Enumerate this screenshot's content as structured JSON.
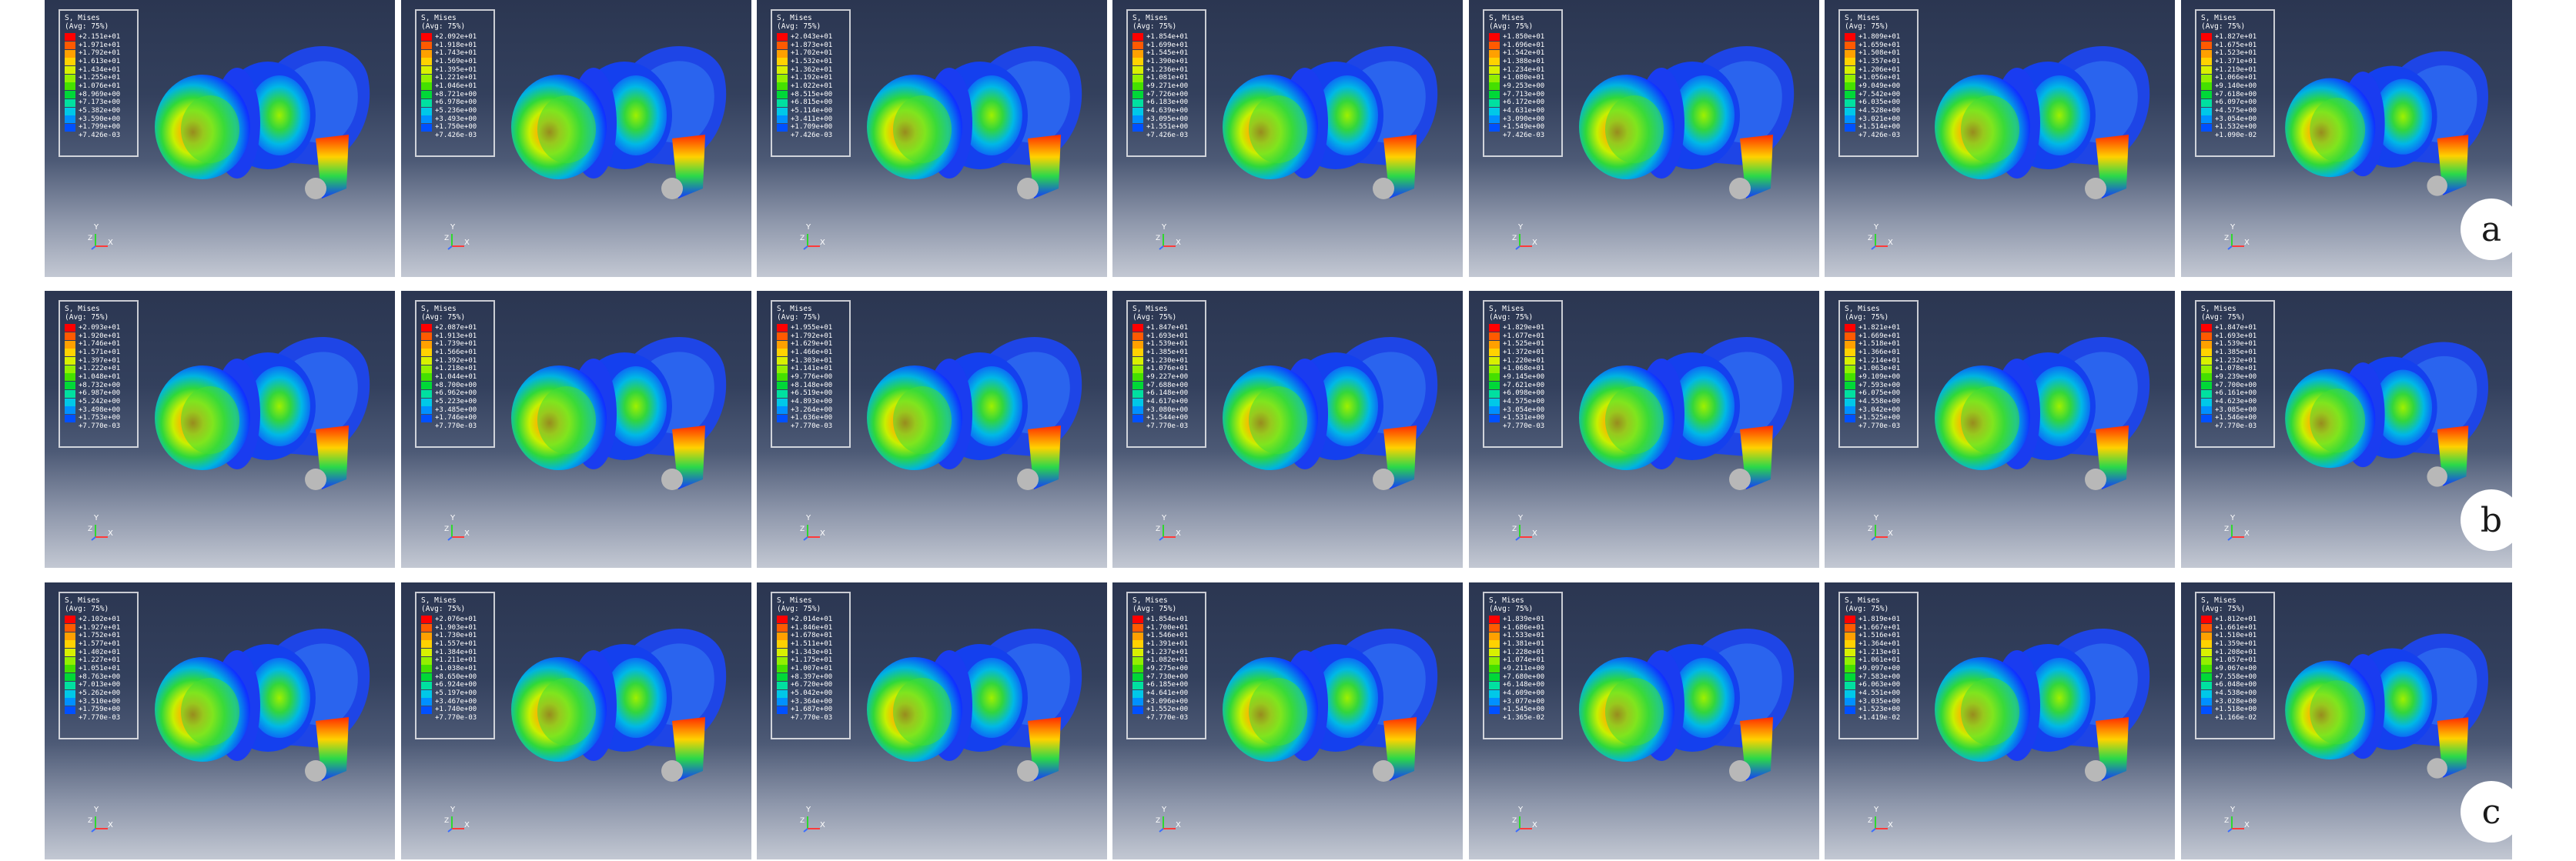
{
  "legend_colors": [
    "#ff0000",
    "#ff5a00",
    "#ffa000",
    "#ffd200",
    "#d8f000",
    "#93ef00",
    "#44e000",
    "#00d838",
    "#00e0a0",
    "#00c8e8",
    "#0090ff",
    "#0050ff",
    "#0a1cff"
  ],
  "axis_labels": {
    "y": "Y",
    "x": "X",
    "z": "Z"
  },
  "rows": [
    {
      "label": "a",
      "panels": [
        {
          "title": "S, Mises",
          "avg": "(Avg: 75%)",
          "values": [
            "+2.151e+01",
            "+1.971e+01",
            "+1.792e+01",
            "+1.613e+01",
            "+1.434e+01",
            "+1.255e+01",
            "+1.076e+01",
            "+8.969e+00",
            "+7.173e+00",
            "+5.382e+00",
            "+3.590e+00",
            "+1.799e+00",
            "+7.426e-03"
          ]
        },
        {
          "title": "S, Mises",
          "avg": "(Avg: 75%)",
          "values": [
            "+2.092e+01",
            "+1.918e+01",
            "+1.743e+01",
            "+1.569e+01",
            "+1.395e+01",
            "+1.221e+01",
            "+1.046e+01",
            "+8.721e+00",
            "+6.978e+00",
            "+5.236e+00",
            "+3.493e+00",
            "+1.750e+00",
            "+7.426e-03"
          ]
        },
        {
          "title": "S, Mises",
          "avg": "(Avg: 75%)",
          "values": [
            "+2.043e+01",
            "+1.873e+01",
            "+1.702e+01",
            "+1.532e+01",
            "+1.362e+01",
            "+1.192e+01",
            "+1.022e+01",
            "+8.515e+00",
            "+6.815e+00",
            "+5.114e+00",
            "+3.411e+00",
            "+1.709e+00",
            "+7.426e-03"
          ]
        },
        {
          "title": "S, Mises",
          "avg": "(Avg: 75%)",
          "values": [
            "+1.854e+01",
            "+1.699e+01",
            "+1.545e+01",
            "+1.390e+01",
            "+1.236e+01",
            "+1.081e+01",
            "+9.271e+00",
            "+7.726e+00",
            "+6.183e+00",
            "+4.639e+00",
            "+3.095e+00",
            "+1.551e+00",
            "+7.426e-03"
          ]
        },
        {
          "title": "S, Mises",
          "avg": "(Avg: 75%)",
          "values": [
            "+1.850e+01",
            "+1.696e+01",
            "+1.542e+01",
            "+1.388e+01",
            "+1.234e+01",
            "+1.080e+01",
            "+9.253e+00",
            "+7.713e+00",
            "+6.172e+00",
            "+4.631e+00",
            "+3.090e+00",
            "+1.549e+00",
            "+7.426e-03"
          ]
        },
        {
          "title": "S, Mises",
          "avg": "(Avg: 75%)",
          "values": [
            "+1.809e+01",
            "+1.659e+01",
            "+1.508e+01",
            "+1.357e+01",
            "+1.206e+01",
            "+1.056e+01",
            "+9.049e+00",
            "+7.542e+00",
            "+6.035e+00",
            "+4.528e+00",
            "+3.021e+00",
            "+1.514e+00",
            "+7.426e-03"
          ]
        },
        {
          "title": "S, Mises",
          "avg": "(Avg: 75%)",
          "values": [
            "+1.827e+01",
            "+1.675e+01",
            "+1.523e+01",
            "+1.371e+01",
            "+1.219e+01",
            "+1.066e+01",
            "+9.140e+00",
            "+7.618e+00",
            "+6.097e+00",
            "+4.575e+00",
            "+3.054e+00",
            "+1.532e+00",
            "+1.090e-02"
          ]
        }
      ]
    },
    {
      "label": "b",
      "panels": [
        {
          "title": "S, Mises",
          "avg": "(Avg: 75%)",
          "values": [
            "+2.093e+01",
            "+1.920e+01",
            "+1.746e+01",
            "+1.571e+01",
            "+1.397e+01",
            "+1.222e+01",
            "+1.048e+01",
            "+8.732e+00",
            "+6.987e+00",
            "+5.242e+00",
            "+3.498e+00",
            "+1.753e+00",
            "+7.770e-03"
          ]
        },
        {
          "title": "S, Mises",
          "avg": "(Avg: 75%)",
          "values": [
            "+2.087e+01",
            "+1.913e+01",
            "+1.739e+01",
            "+1.566e+01",
            "+1.392e+01",
            "+1.218e+01",
            "+1.044e+01",
            "+8.700e+00",
            "+6.962e+00",
            "+5.223e+00",
            "+3.485e+00",
            "+1.746e+00",
            "+7.770e-03"
          ]
        },
        {
          "title": "S, Mises",
          "avg": "(Avg: 75%)",
          "values": [
            "+1.955e+01",
            "+1.792e+01",
            "+1.629e+01",
            "+1.466e+01",
            "+1.303e+01",
            "+1.141e+01",
            "+9.776e+00",
            "+8.148e+00",
            "+6.519e+00",
            "+4.893e+00",
            "+3.264e+00",
            "+1.636e+00",
            "+7.770e-03"
          ]
        },
        {
          "title": "S, Mises",
          "avg": "(Avg: 75%)",
          "values": [
            "+1.847e+01",
            "+1.693e+01",
            "+1.539e+01",
            "+1.385e+01",
            "+1.230e+01",
            "+1.076e+01",
            "+9.227e+00",
            "+7.688e+00",
            "+6.148e+00",
            "+4.617e+00",
            "+3.080e+00",
            "+1.544e+00",
            "+7.770e-03"
          ]
        },
        {
          "title": "S, Mises",
          "avg": "(Avg: 75%)",
          "values": [
            "+1.829e+01",
            "+1.677e+01",
            "+1.525e+01",
            "+1.372e+01",
            "+1.220e+01",
            "+1.068e+01",
            "+9.145e+00",
            "+7.621e+00",
            "+6.098e+00",
            "+4.575e+00",
            "+3.054e+00",
            "+1.531e+00",
            "+7.770e-03"
          ]
        },
        {
          "title": "S, Mises",
          "avg": "(Avg: 75%)",
          "values": [
            "+1.821e+01",
            "+1.669e+01",
            "+1.518e+01",
            "+1.366e+01",
            "+1.214e+01",
            "+1.063e+01",
            "+9.109e+00",
            "+7.593e+00",
            "+6.075e+00",
            "+4.558e+00",
            "+3.042e+00",
            "+1.525e+00",
            "+7.770e-03"
          ]
        },
        {
          "title": "S, Mises",
          "avg": "(Avg: 75%)",
          "values": [
            "+1.847e+01",
            "+1.693e+01",
            "+1.539e+01",
            "+1.385e+01",
            "+1.232e+01",
            "+1.078e+01",
            "+9.239e+00",
            "+7.700e+00",
            "+6.161e+00",
            "+4.623e+00",
            "+3.085e+00",
            "+1.546e+00",
            "+7.770e-03"
          ]
        }
      ]
    },
    {
      "label": "c",
      "panels": [
        {
          "title": "S, Mises",
          "avg": "(Avg: 75%)",
          "values": [
            "+2.102e+01",
            "+1.927e+01",
            "+1.752e+01",
            "+1.577e+01",
            "+1.402e+01",
            "+1.227e+01",
            "+1.051e+01",
            "+8.763e+00",
            "+7.013e+00",
            "+5.262e+00",
            "+3.510e+00",
            "+1.759e+00",
            "+7.770e-03"
          ]
        },
        {
          "title": "S, Mises",
          "avg": "(Avg: 75%)",
          "values": [
            "+2.076e+01",
            "+1.903e+01",
            "+1.730e+01",
            "+1.557e+01",
            "+1.384e+01",
            "+1.211e+01",
            "+1.038e+01",
            "+8.650e+00",
            "+6.924e+00",
            "+5.197e+00",
            "+3.467e+00",
            "+1.740e+00",
            "+7.770e-03"
          ]
        },
        {
          "title": "S, Mises",
          "avg": "(Avg: 75%)",
          "values": [
            "+2.014e+01",
            "+1.846e+01",
            "+1.678e+01",
            "+1.511e+01",
            "+1.343e+01",
            "+1.175e+01",
            "+1.007e+01",
            "+8.397e+00",
            "+6.720e+00",
            "+5.042e+00",
            "+3.364e+00",
            "+1.687e+00",
            "+7.770e-03"
          ]
        },
        {
          "title": "S, Mises",
          "avg": "(Avg: 75%)",
          "values": [
            "+1.854e+01",
            "+1.700e+01",
            "+1.546e+01",
            "+1.391e+01",
            "+1.237e+01",
            "+1.082e+01",
            "+9.275e+00",
            "+7.730e+00",
            "+6.185e+00",
            "+4.641e+00",
            "+3.096e+00",
            "+1.552e+00",
            "+7.770e-03"
          ]
        },
        {
          "title": "S, Mises",
          "avg": "(Avg: 75%)",
          "values": [
            "+1.839e+01",
            "+1.686e+01",
            "+1.533e+01",
            "+1.381e+01",
            "+1.228e+01",
            "+1.074e+01",
            "+9.211e+00",
            "+7.680e+00",
            "+6.148e+00",
            "+4.609e+00",
            "+3.077e+00",
            "+1.545e+00",
            "+1.365e-02"
          ]
        },
        {
          "title": "S, Mises",
          "avg": "(Avg: 75%)",
          "values": [
            "+1.819e+01",
            "+1.667e+01",
            "+1.516e+01",
            "+1.364e+01",
            "+1.213e+01",
            "+1.061e+01",
            "+9.097e+00",
            "+7.583e+00",
            "+6.063e+00",
            "+4.551e+00",
            "+3.035e+00",
            "+1.523e+00",
            "+1.419e-02"
          ]
        },
        {
          "title": "S, Mises",
          "avg": "(Avg: 75%)",
          "values": [
            "+1.812e+01",
            "+1.661e+01",
            "+1.510e+01",
            "+1.359e+01",
            "+1.208e+01",
            "+1.057e+01",
            "+9.067e+00",
            "+7.558e+00",
            "+6.048e+00",
            "+4.538e+00",
            "+3.028e+00",
            "+1.518e+00",
            "+1.166e-02"
          ]
        }
      ]
    }
  ]
}
